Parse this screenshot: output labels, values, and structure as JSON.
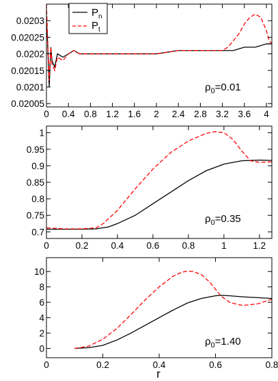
{
  "figure": {
    "xlabel": "r",
    "legend": {
      "placement": "top-left",
      "entries": [
        {
          "main": "P",
          "sub": "n",
          "color": "#000000",
          "dash": "solid"
        },
        {
          "main": "P",
          "sub": "t",
          "color": "#ff0000",
          "dash": "dashed"
        }
      ]
    }
  },
  "chart_data": [
    {
      "type": "line",
      "annotation": {
        "main": "ρ",
        "sub": "0",
        "rest": "=0.01"
      },
      "xlim": [
        0,
        4.1
      ],
      "ylim": [
        0.02004,
        0.02035
      ],
      "xticks": [
        0,
        0.4,
        0.8,
        1.2,
        1.6,
        2,
        2.4,
        2.8,
        3.2,
        3.6,
        4
      ],
      "xtick_labels": [
        "0",
        "0.4",
        "0.8",
        "1.2",
        "1.6",
        "2",
        "2.4",
        "2.8",
        "3.2",
        "3.6",
        "4"
      ],
      "yticks": [
        0.02005,
        0.0201,
        0.02015,
        0.0202,
        0.02025,
        0.0203
      ],
      "ytick_labels": [
        "0.02005",
        "0.0201",
        "0.02015",
        "0.0202",
        "0.02025",
        "0.0203"
      ],
      "grid": false,
      "series": [
        {
          "name": "Pn",
          "color": "#000000",
          "dash": "solid",
          "x": [
            0,
            0.02,
            0.05,
            0.08,
            0.1,
            0.15,
            0.2,
            0.3,
            0.4,
            0.5,
            0.6,
            0.8,
            1.0,
            1.2,
            1.6,
            2.0,
            2.4,
            2.8,
            3.2,
            3.4,
            3.6,
            3.8,
            4.0,
            4.1
          ],
          "y": [
            0.0203,
            0.02024,
            0.0201,
            0.02022,
            0.02018,
            0.02016,
            0.0202,
            0.02019,
            0.0202,
            0.02021,
            0.0202,
            0.0202,
            0.0202,
            0.0202,
            0.0202,
            0.0202,
            0.02021,
            0.02021,
            0.02021,
            0.02021,
            0.02022,
            0.02022,
            0.02023,
            0.02023
          ]
        },
        {
          "name": "Pt",
          "color": "#ff0000",
          "dash": "dashed",
          "x": [
            0,
            0.02,
            0.05,
            0.08,
            0.1,
            0.15,
            0.2,
            0.3,
            0.4,
            0.5,
            0.6,
            0.8,
            1.0,
            1.2,
            1.6,
            2.0,
            2.4,
            2.8,
            3.2,
            3.3,
            3.4,
            3.5,
            3.6,
            3.7,
            3.8,
            3.9,
            4.0,
            4.05,
            4.1
          ],
          "y": [
            0.02035,
            0.02025,
            0.02012,
            0.02022,
            0.02017,
            0.02015,
            0.02019,
            0.02018,
            0.0202,
            0.02021,
            0.0202,
            0.0202,
            0.0202,
            0.0202,
            0.0202,
            0.0202,
            0.02021,
            0.02021,
            0.02021,
            0.02022,
            0.02024,
            0.02026,
            0.02029,
            0.02031,
            0.02032,
            0.02031,
            0.02027,
            0.02024,
            0.02023
          ]
        }
      ]
    },
    {
      "type": "line",
      "annotation": {
        "main": "ρ",
        "sub": "0",
        "rest": "=0.35"
      },
      "xlim": [
        0,
        1.27
      ],
      "ylim": [
        0.68,
        1.02
      ],
      "xticks": [
        0,
        0.2,
        0.4,
        0.6,
        0.8,
        1,
        1.2
      ],
      "xtick_labels": [
        "0",
        "0.2",
        "0.4",
        "0.6",
        "0.8",
        "1",
        "1.2"
      ],
      "yticks": [
        0.7,
        0.75,
        0.8,
        0.85,
        0.9,
        0.95,
        1
      ],
      "ytick_labels": [
        "0.7",
        "0.75",
        "0.8",
        "0.85",
        "0.9",
        "0.95",
        "1"
      ],
      "grid": false,
      "series": [
        {
          "name": "Pn",
          "color": "#000000",
          "dash": "solid",
          "x": [
            0,
            0.1,
            0.2,
            0.28,
            0.35,
            0.4,
            0.5,
            0.6,
            0.7,
            0.8,
            0.9,
            1.0,
            1.1,
            1.2,
            1.27
          ],
          "y": [
            0.708,
            0.708,
            0.708,
            0.709,
            0.715,
            0.725,
            0.75,
            0.785,
            0.82,
            0.855,
            0.885,
            0.905,
            0.915,
            0.917,
            0.916
          ]
        },
        {
          "name": "Pt",
          "color": "#ff0000",
          "dash": "dashed",
          "x": [
            0,
            0.1,
            0.2,
            0.28,
            0.32,
            0.4,
            0.5,
            0.6,
            0.7,
            0.8,
            0.9,
            0.95,
            1.0,
            1.05,
            1.1,
            1.15,
            1.2,
            1.27
          ],
          "y": [
            0.712,
            0.709,
            0.709,
            0.712,
            0.725,
            0.765,
            0.83,
            0.89,
            0.94,
            0.975,
            0.998,
            1.003,
            1.0,
            0.98,
            0.945,
            0.915,
            0.91,
            0.912
          ]
        }
      ]
    },
    {
      "type": "line",
      "annotation": {
        "main": "ρ",
        "sub": "0",
        "rest": "=1.40"
      },
      "xlim": [
        0,
        0.8
      ],
      "ylim": [
        -1.2,
        11.8
      ],
      "xticks": [
        0,
        0.2,
        0.4,
        0.6,
        0.8
      ],
      "xtick_labels": [
        "0",
        "0.2",
        "0.4",
        "0.6",
        "0.8"
      ],
      "yticks": [
        0,
        2,
        4,
        6,
        8,
        10
      ],
      "ytick_labels": [
        "0",
        "2",
        "4",
        "6",
        "8",
        "10"
      ],
      "grid": false,
      "series": [
        {
          "name": "Pn",
          "color": "#000000",
          "dash": "solid",
          "x": [
            0.1,
            0.15,
            0.2,
            0.25,
            0.3,
            0.35,
            0.4,
            0.45,
            0.5,
            0.55,
            0.6,
            0.62,
            0.65,
            0.7,
            0.75,
            0.8
          ],
          "y": [
            0,
            0.1,
            0.4,
            1.1,
            2.0,
            3.0,
            4.0,
            5.0,
            5.9,
            6.5,
            6.85,
            6.9,
            6.85,
            6.7,
            6.6,
            6.5
          ]
        },
        {
          "name": "Pt",
          "color": "#ff0000",
          "dash": "dashed",
          "x": [
            0.1,
            0.15,
            0.2,
            0.25,
            0.3,
            0.35,
            0.4,
            0.45,
            0.48,
            0.5,
            0.52,
            0.55,
            0.58,
            0.6,
            0.62,
            0.65,
            0.68,
            0.7,
            0.75,
            0.8
          ],
          "y": [
            0,
            0.3,
            1.2,
            2.6,
            4.4,
            6.3,
            8.0,
            9.4,
            9.9,
            10.05,
            10.0,
            9.6,
            8.6,
            7.7,
            6.8,
            6.0,
            5.7,
            5.6,
            5.8,
            6.4
          ]
        }
      ]
    }
  ]
}
